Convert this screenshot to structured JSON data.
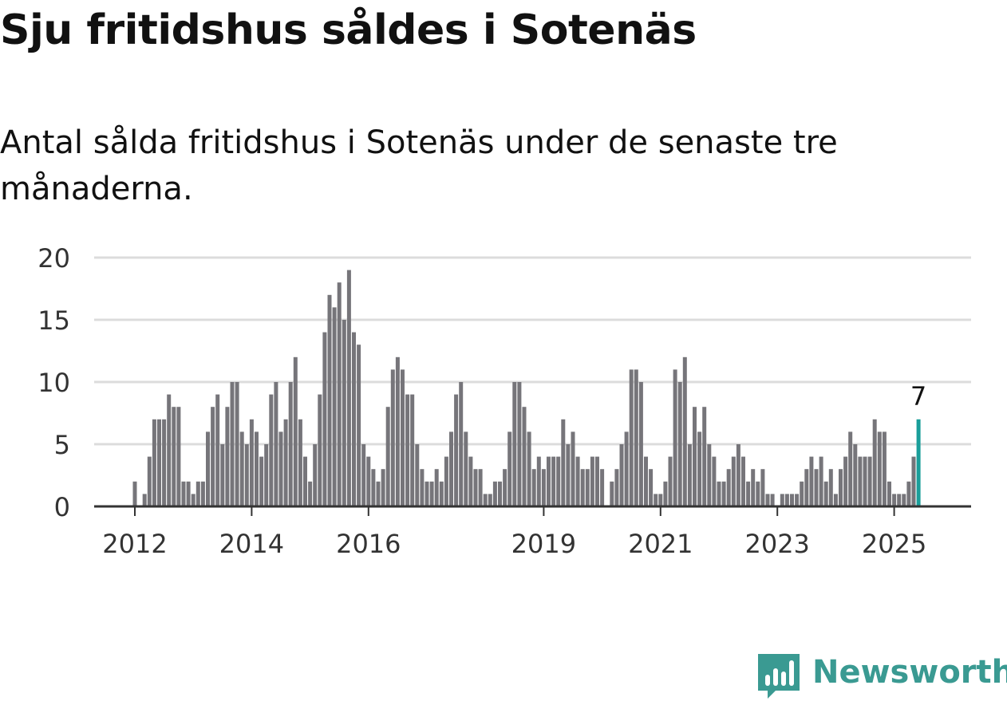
{
  "title": "Sju fritidshus såldes i Sotenäs",
  "subtitle": "Antal sålda fritidshus i Sotenäs under de senaste tre månaderna.",
  "brand": {
    "name": "Newsworthy",
    "color": "#3a9a92"
  },
  "chart_data": {
    "type": "bar",
    "title": "",
    "xlabel": "",
    "ylabel": "",
    "ylim": [
      0,
      20
    ],
    "yticks": [
      0,
      5,
      10,
      15,
      20
    ],
    "grid": true,
    "legend": "none",
    "bar_color": "#76757a",
    "highlight_color": "#1a9e9a",
    "x_start": "2011-10",
    "x_unit": "month",
    "xtick_labels": [
      {
        "label": "2012",
        "date": "2012-01"
      },
      {
        "label": "2014",
        "date": "2014-01"
      },
      {
        "label": "2016",
        "date": "2016-01"
      },
      {
        "label": "2019",
        "date": "2019-01"
      },
      {
        "label": "2021",
        "date": "2021-01"
      },
      {
        "label": "2023",
        "date": "2023-01"
      },
      {
        "label": "2025",
        "date": "2025-01"
      }
    ],
    "values": [
      0,
      0,
      0,
      2,
      0,
      1,
      4,
      7,
      7,
      7,
      9,
      8,
      8,
      2,
      2,
      1,
      2,
      2,
      6,
      8,
      9,
      5,
      8,
      10,
      10,
      6,
      5,
      7,
      6,
      4,
      5,
      9,
      10,
      6,
      7,
      10,
      12,
      7,
      4,
      2,
      5,
      9,
      14,
      17,
      16,
      18,
      15,
      19,
      14,
      13,
      5,
      4,
      3,
      2,
      3,
      8,
      11,
      12,
      11,
      9,
      9,
      5,
      3,
      2,
      2,
      3,
      2,
      4,
      6,
      9,
      10,
      6,
      4,
      3,
      3,
      1,
      1,
      2,
      2,
      3,
      6,
      10,
      10,
      8,
      6,
      3,
      4,
      3,
      4,
      4,
      4,
      7,
      5,
      6,
      4,
      3,
      3,
      4,
      4,
      3,
      0,
      2,
      3,
      5,
      6,
      11,
      11,
      10,
      4,
      3,
      1,
      1,
      2,
      4,
      11,
      10,
      12,
      5,
      8,
      6,
      8,
      5,
      4,
      2,
      2,
      3,
      4,
      5,
      4,
      2,
      3,
      2,
      3,
      1,
      1,
      0,
      1,
      1,
      1,
      1,
      2,
      3,
      4,
      3,
      4,
      2,
      3,
      1,
      3,
      4,
      6,
      5,
      4,
      4,
      4,
      7,
      6,
      6,
      2,
      1,
      1,
      1,
      2,
      4,
      7
    ],
    "highlight": {
      "index": 164,
      "value": 7,
      "label": "7"
    }
  }
}
